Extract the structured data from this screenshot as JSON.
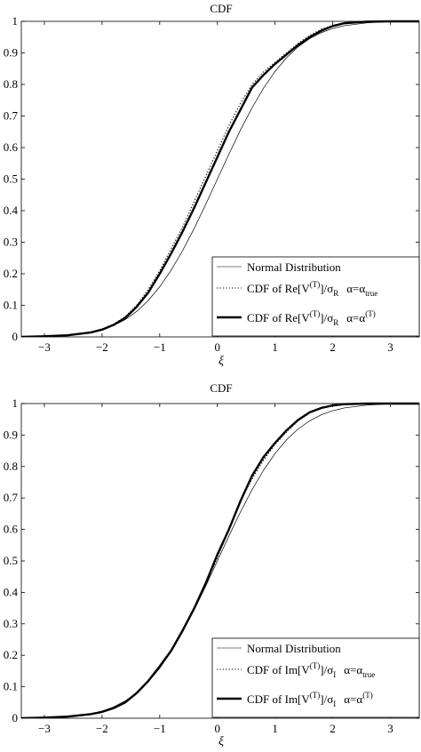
{
  "chart_data": [
    {
      "type": "line",
      "title": "CDF",
      "xlabel": "ξ",
      "ylabel": "",
      "xlim": [
        -3.4,
        3.5
      ],
      "ylim": [
        0,
        1
      ],
      "xticks": [
        "-3",
        "-2",
        "-1",
        "0",
        "1",
        "2",
        "3"
      ],
      "yticks": [
        "0",
        "0.1",
        "0.2",
        "0.3",
        "0.4",
        "0.5",
        "0.6",
        "0.7",
        "0.8",
        "0.9",
        "1"
      ],
      "legend_position": "bottom-right",
      "legend_entries": [
        "Normal Distribution",
        "CDF of Re[V^(T)]/σ_R  α=α_true",
        "CDF of Re[V^(T)]/σ_R  α=α^(T)"
      ],
      "series": [
        {
          "name": "Normal Distribution",
          "style": "thin-solid",
          "x": [
            -3.4,
            -3.0,
            -2.6,
            -2.2,
            -2.0,
            -1.8,
            -1.6,
            -1.4,
            -1.2,
            -1.0,
            -0.8,
            -0.6,
            -0.4,
            -0.2,
            0.0,
            0.2,
            0.4,
            0.6,
            0.8,
            1.0,
            1.2,
            1.4,
            1.6,
            1.8,
            2.0,
            2.2,
            2.6,
            3.0,
            3.5
          ],
          "y": [
            0.0003,
            0.0013,
            0.0047,
            0.0139,
            0.0228,
            0.0359,
            0.0548,
            0.0808,
            0.1151,
            0.1587,
            0.2119,
            0.2743,
            0.3446,
            0.4207,
            0.5,
            0.5793,
            0.6554,
            0.7257,
            0.7881,
            0.8413,
            0.8849,
            0.9192,
            0.9452,
            0.9641,
            0.9772,
            0.9861,
            0.9953,
            0.9987,
            0.9998
          ]
        },
        {
          "name": "CDF of Re[V^(T)]/σ_R  α=α_true",
          "style": "dotted",
          "x": [
            -3.4,
            -3.0,
            -2.6,
            -2.2,
            -2.0,
            -1.8,
            -1.6,
            -1.4,
            -1.2,
            -1.0,
            -0.8,
            -0.6,
            -0.4,
            -0.2,
            0.0,
            0.2,
            0.4,
            0.6,
            0.8,
            1.0,
            1.2,
            1.4,
            1.6,
            1.8,
            2.0,
            2.2,
            2.6,
            3.0,
            3.5
          ],
          "y": [
            0.0,
            0.002,
            0.006,
            0.015,
            0.025,
            0.04,
            0.064,
            0.1,
            0.15,
            0.21,
            0.28,
            0.35,
            0.43,
            0.51,
            0.59,
            0.67,
            0.74,
            0.8,
            0.84,
            0.87,
            0.9,
            0.93,
            0.955,
            0.975,
            0.987,
            0.995,
            0.999,
            1.0,
            1.0
          ]
        },
        {
          "name": "CDF of Re[V^(T)]/σ_R  α=α^(T)",
          "style": "thick-solid",
          "x": [
            -3.4,
            -3.0,
            -2.6,
            -2.2,
            -2.0,
            -1.8,
            -1.6,
            -1.4,
            -1.2,
            -1.0,
            -0.8,
            -0.6,
            -0.4,
            -0.2,
            0.0,
            0.2,
            0.4,
            0.6,
            0.8,
            1.0,
            1.2,
            1.4,
            1.6,
            1.8,
            2.0,
            2.2,
            2.6,
            3.0,
            3.5
          ],
          "y": [
            0.0,
            0.002,
            0.005,
            0.014,
            0.023,
            0.038,
            0.06,
            0.095,
            0.14,
            0.2,
            0.265,
            0.335,
            0.41,
            0.49,
            0.57,
            0.65,
            0.72,
            0.79,
            0.83,
            0.865,
            0.895,
            0.925,
            0.95,
            0.97,
            0.985,
            0.994,
            0.999,
            1.0,
            1.0
          ]
        }
      ]
    },
    {
      "type": "line",
      "title": "CDF",
      "xlabel": "ξ",
      "ylabel": "",
      "xlim": [
        -3.4,
        3.5
      ],
      "ylim": [
        0,
        1
      ],
      "xticks": [
        "-3",
        "-2",
        "-1",
        "0",
        "1",
        "2",
        "3"
      ],
      "yticks": [
        "0",
        "0.1",
        "0.2",
        "0.3",
        "0.4",
        "0.5",
        "0.6",
        "0.7",
        "0.8",
        "0.9",
        "1"
      ],
      "legend_position": "bottom-right",
      "legend_entries": [
        "Normal Distribution",
        "CDF of Im[V^(T)]/σ_I  α=α_true",
        "CDF of Im[V^(T)]/σ_I  α=α^(T)"
      ],
      "series": [
        {
          "name": "Normal Distribution",
          "style": "thin-solid",
          "x": [
            -3.4,
            -3.0,
            -2.6,
            -2.2,
            -2.0,
            -1.8,
            -1.6,
            -1.4,
            -1.2,
            -1.0,
            -0.8,
            -0.6,
            -0.4,
            -0.2,
            0.0,
            0.2,
            0.4,
            0.6,
            0.8,
            1.0,
            1.2,
            1.4,
            1.6,
            1.8,
            2.0,
            2.2,
            2.6,
            3.0,
            3.5
          ],
          "y": [
            0.0003,
            0.0013,
            0.0047,
            0.0139,
            0.0228,
            0.0359,
            0.0548,
            0.0808,
            0.1151,
            0.1587,
            0.2119,
            0.2743,
            0.3446,
            0.4207,
            0.5,
            0.5793,
            0.6554,
            0.7257,
            0.7881,
            0.8413,
            0.8849,
            0.9192,
            0.9452,
            0.9641,
            0.9772,
            0.9861,
            0.9953,
            0.9987,
            0.9998
          ]
        },
        {
          "name": "CDF of Im[V^(T)]/σ_I  α=α_true",
          "style": "dotted",
          "x": [
            -3.4,
            -3.0,
            -2.6,
            -2.2,
            -2.0,
            -1.8,
            -1.6,
            -1.4,
            -1.2,
            -1.0,
            -0.8,
            -0.6,
            -0.4,
            -0.2,
            0.0,
            0.2,
            0.4,
            0.6,
            0.8,
            1.0,
            1.2,
            1.4,
            1.6,
            1.8,
            2.0,
            2.2,
            2.6,
            3.0,
            3.5
          ],
          "y": [
            0.0,
            0.002,
            0.005,
            0.013,
            0.02,
            0.032,
            0.052,
            0.082,
            0.12,
            0.165,
            0.215,
            0.28,
            0.35,
            0.43,
            0.51,
            0.6,
            0.69,
            0.76,
            0.82,
            0.87,
            0.91,
            0.945,
            0.97,
            0.985,
            0.993,
            0.997,
            1.0,
            1.0,
            1.0
          ]
        },
        {
          "name": "CDF of Im[V^(T)]/σ_I  α=α^(T)",
          "style": "thick-solid",
          "x": [
            -3.4,
            -3.0,
            -2.6,
            -2.2,
            -2.0,
            -1.8,
            -1.6,
            -1.4,
            -1.2,
            -1.0,
            -0.8,
            -0.6,
            -0.4,
            -0.2,
            0.0,
            0.2,
            0.4,
            0.6,
            0.8,
            1.0,
            1.2,
            1.4,
            1.6,
            1.8,
            2.0,
            2.2,
            2.6,
            3.0,
            3.5
          ],
          "y": [
            0.0,
            0.002,
            0.005,
            0.013,
            0.02,
            0.032,
            0.05,
            0.08,
            0.118,
            0.165,
            0.215,
            0.28,
            0.35,
            0.43,
            0.52,
            0.6,
            0.69,
            0.77,
            0.83,
            0.875,
            0.915,
            0.948,
            0.972,
            0.986,
            0.994,
            0.998,
            1.0,
            1.0,
            1.0
          ]
        }
      ]
    }
  ],
  "legend_text": [
    {
      "entries": [
        {
          "base": "Normal Distribution"
        },
        {
          "pre": "CDF of Re[V",
          "sup1": "(T)",
          "mid": "]/σ",
          "sub1": "R",
          "alpha": "α=α",
          "sub2": "true",
          "sup2": ""
        },
        {
          "pre": "CDF of Re[V",
          "sup1": "(T)",
          "mid": "]/σ",
          "sub1": "R",
          "alpha": "α=α",
          "sub2": "",
          "sup2": "(T)"
        }
      ]
    },
    {
      "entries": [
        {
          "base": "Normal Distribution"
        },
        {
          "pre": "CDF of Im[V",
          "sup1": "(T)",
          "mid": "]/σ",
          "sub1": "I",
          "alpha": "α=α",
          "sub2": "true",
          "sup2": ""
        },
        {
          "pre": "CDF of Im[V",
          "sup1": "(T)",
          "mid": "]/σ",
          "sub1": "I",
          "alpha": "α=α",
          "sub2": "",
          "sup2": "(T)"
        }
      ]
    }
  ]
}
